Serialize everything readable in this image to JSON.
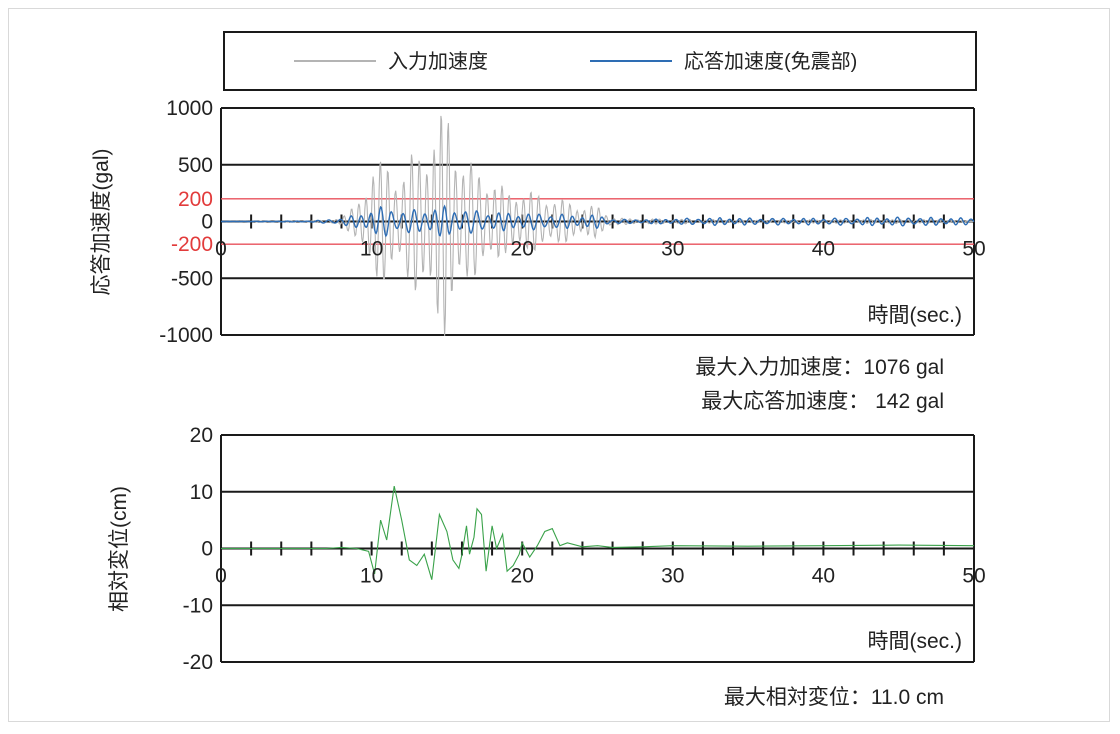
{
  "legend": {
    "input_label": "入力加速度",
    "response_label": "応答加速度(免震部)"
  },
  "colors": {
    "input": "#b4b4b4",
    "response": "#2e6db4",
    "displacement": "#3aa24a",
    "threshold": "#e8505b",
    "axis": "#1a1a1a"
  },
  "stats": {
    "max_input": "最大入力加速度：1076 gal",
    "max_response": "最大応答加速度：  142 gal",
    "max_displacement": "最大相対変位：11.0 cm"
  },
  "chart_data": [
    {
      "type": "line",
      "ylabel": "応答加速度(gal)",
      "xlabel": "時間(sec.)",
      "xlim": [
        0,
        50
      ],
      "ylim": [
        -1000,
        1000
      ],
      "x_ticks": [
        "0",
        "10",
        "20",
        "30",
        "40",
        "50"
      ],
      "y_ticks": [
        {
          "label": "1000",
          "value": 1000,
          "red": false
        },
        {
          "label": "500",
          "value": 500,
          "red": false
        },
        {
          "label": "200",
          "value": 200,
          "red": true
        },
        {
          "label": "0",
          "value": 0,
          "red": false
        },
        {
          "label": "-200",
          "value": -200,
          "red": true
        },
        {
          "label": "-500",
          "value": -500,
          "red": false
        },
        {
          "label": "-1000",
          "value": -1000,
          "red": false
        }
      ],
      "reference_lines": [
        200,
        -200
      ],
      "series": [
        {
          "name": "入力加速度",
          "envelope": [
            [
              0,
              0
            ],
            [
              7,
              10
            ],
            [
              8,
              40
            ],
            [
              9,
              150
            ],
            [
              10,
              520
            ],
            [
              11,
              560
            ],
            [
              12,
              430
            ],
            [
              13,
              680
            ],
            [
              14,
              800
            ],
            [
              15,
              1076
            ],
            [
              16,
              600
            ],
            [
              17,
              480
            ],
            [
              18,
              420
            ],
            [
              19,
              270
            ],
            [
              20,
              310
            ],
            [
              21,
              250
            ],
            [
              22,
              230
            ],
            [
              23,
              180
            ],
            [
              24,
              150
            ],
            [
              25,
              140
            ],
            [
              26,
              40
            ],
            [
              27,
              25
            ],
            [
              30,
              22
            ],
            [
              35,
              15
            ],
            [
              40,
              15
            ],
            [
              45,
              20
            ],
            [
              48,
              18
            ],
            [
              50,
              0
            ]
          ],
          "period": 0.5
        },
        {
          "name": "応答加速度(免震部)",
          "envelope": [
            [
              0,
              0
            ],
            [
              6,
              5
            ],
            [
              8,
              30
            ],
            [
              9,
              60
            ],
            [
              10,
              110
            ],
            [
              11,
              142
            ],
            [
              12,
              95
            ],
            [
              13,
              110
            ],
            [
              14,
              120
            ],
            [
              15,
              142
            ],
            [
              16,
              110
            ],
            [
              17,
              100
            ],
            [
              18,
              85
            ],
            [
              19,
              80
            ],
            [
              20,
              75
            ],
            [
              22,
              70
            ],
            [
              24,
              55
            ],
            [
              25,
              60
            ],
            [
              26,
              20
            ],
            [
              28,
              18
            ],
            [
              30,
              25
            ],
            [
              33,
              35
            ],
            [
              36,
              30
            ],
            [
              40,
              30
            ],
            [
              45,
              40
            ],
            [
              48,
              35
            ],
            [
              50,
              30
            ]
          ],
          "period": 0.7
        }
      ]
    },
    {
      "type": "line",
      "ylabel": "相対変位(cm)",
      "xlabel": "時間(sec.)",
      "xlim": [
        0,
        50
      ],
      "ylim": [
        -20,
        20
      ],
      "x_ticks": [
        "0",
        "10",
        "20",
        "30",
        "40",
        "50"
      ],
      "y_ticks": [
        {
          "label": "20",
          "value": 20,
          "red": false
        },
        {
          "label": "10",
          "value": 10,
          "red": false
        },
        {
          "label": "0",
          "value": 0,
          "red": false
        },
        {
          "label": "-10",
          "value": -10,
          "red": false
        },
        {
          "label": "-20",
          "value": -20,
          "red": false
        }
      ],
      "series": [
        {
          "name": "相対変位",
          "points": [
            [
              0,
              0
            ],
            [
              7,
              0
            ],
            [
              8,
              0.2
            ],
            [
              9,
              0
            ],
            [
              9.8,
              -0.5
            ],
            [
              10.2,
              -4.5
            ],
            [
              10.6,
              5
            ],
            [
              11,
              1.5
            ],
            [
              11.5,
              11
            ],
            [
              12,
              5
            ],
            [
              12.5,
              -2
            ],
            [
              13,
              -3
            ],
            [
              13.5,
              -1
            ],
            [
              14,
              -5.5
            ],
            [
              14.5,
              6
            ],
            [
              15,
              3
            ],
            [
              15.4,
              -2
            ],
            [
              15.8,
              -3.5
            ],
            [
              16,
              -1
            ],
            [
              16.3,
              4
            ],
            [
              16.5,
              -1
            ],
            [
              16.8,
              2
            ],
            [
              17,
              7
            ],
            [
              17.3,
              6
            ],
            [
              17.6,
              -4
            ],
            [
              18,
              4
            ],
            [
              18.3,
              0
            ],
            [
              18.7,
              2.5
            ],
            [
              19,
              -4
            ],
            [
              19.4,
              -3
            ],
            [
              19.8,
              -1
            ],
            [
              20,
              1
            ],
            [
              20.5,
              -1.5
            ],
            [
              21,
              0.5
            ],
            [
              21.5,
              3
            ],
            [
              22,
              3.5
            ],
            [
              22.5,
              0.5
            ],
            [
              23,
              1
            ],
            [
              24,
              0.3
            ],
            [
              25,
              0.5
            ],
            [
              26,
              0.2
            ],
            [
              28,
              0.3
            ],
            [
              30,
              0.5
            ],
            [
              35,
              0.4
            ],
            [
              40,
              0.5
            ],
            [
              45,
              0.6
            ],
            [
              50,
              0.5
            ]
          ]
        }
      ]
    }
  ]
}
